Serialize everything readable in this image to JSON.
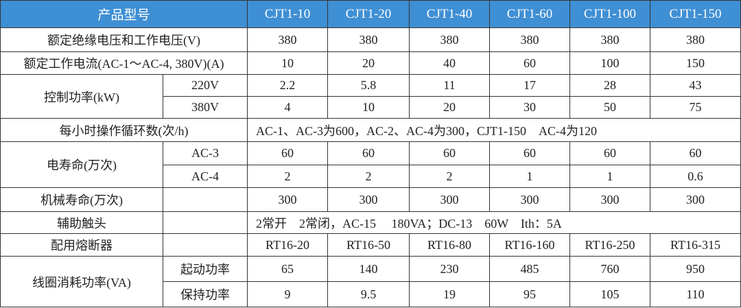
{
  "header": {
    "label": "产品型号",
    "models": [
      "CJT1-10",
      "CJT1-20",
      "CJT1-40",
      "CJT1-60",
      "CJT1-100",
      "CJT1-150"
    ]
  },
  "rows": {
    "insulation_voltage": {
      "label": "额定绝缘电压和工作电压(V)",
      "values": [
        "380",
        "380",
        "380",
        "380",
        "380",
        "380"
      ]
    },
    "rated_current": {
      "label": "额定工作电流(AC-1～AC-4, 380V)(A)",
      "values": [
        "10",
        "20",
        "40",
        "60",
        "100",
        "150"
      ]
    },
    "control_power": {
      "label": "控制功率(kW)",
      "sub": [
        {
          "label": "220V",
          "values": [
            "2.2",
            "5.8",
            "11",
            "17",
            "28",
            "43"
          ]
        },
        {
          "label": "380V",
          "values": [
            "4",
            "10",
            "20",
            "30",
            "50",
            "75"
          ]
        }
      ]
    },
    "operation_cycles": {
      "label": "每小时操作循环数(次/h)",
      "text": "AC-1、AC-3为600，AC-2、AC-4为300，CJT1-150　AC-4为120"
    },
    "electrical_life": {
      "label": "电寿命(万次)",
      "sub": [
        {
          "label": "AC-3",
          "values": [
            "60",
            "60",
            "60",
            "60",
            "60",
            "60"
          ]
        },
        {
          "label": "AC-4",
          "values": [
            "2",
            "2",
            "2",
            "1",
            "1",
            "0.6"
          ]
        }
      ]
    },
    "mechanical_life": {
      "label": "机械寿命(万次)",
      "values": [
        "300",
        "300",
        "300",
        "300",
        "300",
        "300"
      ]
    },
    "aux_contacts": {
      "label": "辅助触头",
      "text": "2常开　2常闭，AC-15　 180VA；DC-13　60W　Ith：5A"
    },
    "fuse": {
      "label": "配用熔断器",
      "values": [
        "RT16-20",
        "RT16-50",
        "RT16-80",
        "RT16-160",
        "RT16-250",
        "RT16-315"
      ]
    },
    "coil_power": {
      "label": "线圈消耗功率(VA)",
      "sub": [
        {
          "label": "起动功率",
          "values": [
            "65",
            "140",
            "230",
            "485",
            "760",
            "950"
          ]
        },
        {
          "label": "保持功率",
          "values": [
            "9",
            "9.5",
            "19",
            "95",
            "105",
            "110"
          ]
        }
      ]
    }
  },
  "colors": {
    "header_bg": "#3f8fd4",
    "header_text": "#ffffff"
  }
}
